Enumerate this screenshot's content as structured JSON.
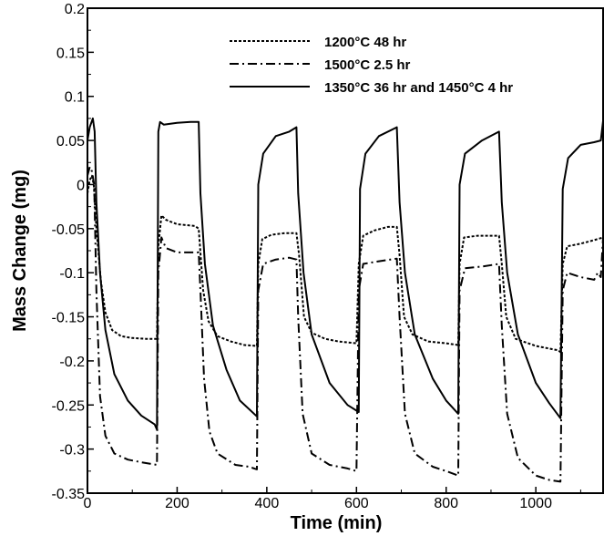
{
  "chart_data": {
    "type": "line",
    "title": "",
    "xlabel": "Time (min)",
    "ylabel": "Mass Change (mg)",
    "xlim": [
      0,
      1150
    ],
    "ylim": [
      -0.35,
      0.2
    ],
    "x_ticks": [
      0,
      200,
      400,
      600,
      800,
      1000
    ],
    "x_tick_labels": [
      "0",
      "200",
      "400",
      "600",
      "800",
      "1000"
    ],
    "y_ticks": [
      -0.35,
      -0.3,
      -0.25,
      -0.2,
      -0.15,
      -0.1,
      -0.05,
      0,
      0.05,
      0.1,
      0.15,
      0.2
    ],
    "y_tick_labels": [
      "-0.35",
      "-0.3",
      "-0.25",
      "-0.2",
      "-0.15",
      "-0.1",
      "-0.05",
      "0",
      "0.05",
      "0.1",
      "0.15",
      "0.2"
    ],
    "grid": false,
    "legend_position": "top-right",
    "series": [
      {
        "name": "1200°C 48 hr",
        "style": "dotted",
        "color": "#000000",
        "points": [
          [
            0,
            -0.01
          ],
          [
            5,
            0.005
          ],
          [
            10,
            0.01
          ],
          [
            14,
            0.0
          ],
          [
            20,
            -0.05
          ],
          [
            30,
            -0.11
          ],
          [
            40,
            -0.145
          ],
          [
            55,
            -0.165
          ],
          [
            75,
            -0.172
          ],
          [
            100,
            -0.174
          ],
          [
            130,
            -0.175
          ],
          [
            155,
            -0.175
          ],
          [
            158,
            -0.07
          ],
          [
            165,
            -0.035
          ],
          [
            175,
            -0.04
          ],
          [
            200,
            -0.045
          ],
          [
            220,
            -0.046
          ],
          [
            240,
            -0.047
          ],
          [
            248,
            -0.05
          ],
          [
            258,
            -0.12
          ],
          [
            270,
            -0.155
          ],
          [
            290,
            -0.172
          ],
          [
            320,
            -0.178
          ],
          [
            350,
            -0.182
          ],
          [
            378,
            -0.183
          ],
          [
            381,
            -0.09
          ],
          [
            390,
            -0.062
          ],
          [
            410,
            -0.057
          ],
          [
            440,
            -0.055
          ],
          [
            466,
            -0.055
          ],
          [
            472,
            -0.08
          ],
          [
            483,
            -0.15
          ],
          [
            500,
            -0.168
          ],
          [
            530,
            -0.175
          ],
          [
            560,
            -0.178
          ],
          [
            600,
            -0.18
          ],
          [
            605,
            -0.09
          ],
          [
            615,
            -0.058
          ],
          [
            640,
            -0.052
          ],
          [
            670,
            -0.048
          ],
          [
            690,
            -0.048
          ],
          [
            696,
            -0.08
          ],
          [
            706,
            -0.15
          ],
          [
            725,
            -0.17
          ],
          [
            760,
            -0.178
          ],
          [
            800,
            -0.18
          ],
          [
            827,
            -0.182
          ],
          [
            830,
            -0.09
          ],
          [
            840,
            -0.06
          ],
          [
            870,
            -0.058
          ],
          [
            900,
            -0.058
          ],
          [
            918,
            -0.058
          ],
          [
            924,
            -0.09
          ],
          [
            934,
            -0.15
          ],
          [
            955,
            -0.175
          ],
          [
            1000,
            -0.183
          ],
          [
            1050,
            -0.188
          ],
          [
            1055,
            -0.19
          ],
          [
            1060,
            -0.09
          ],
          [
            1070,
            -0.07
          ],
          [
            1100,
            -0.067
          ],
          [
            1130,
            -0.063
          ],
          [
            1150,
            -0.06
          ]
        ]
      },
      {
        "name": "1500°C 2.5 hr",
        "style": "dash-dot",
        "color": "#000000",
        "points": [
          [
            0,
            0.01
          ],
          [
            5,
            0.02
          ],
          [
            10,
            0.015
          ],
          [
            15,
            0.0
          ],
          [
            20,
            -0.12
          ],
          [
            28,
            -0.24
          ],
          [
            40,
            -0.285
          ],
          [
            60,
            -0.305
          ],
          [
            90,
            -0.312
          ],
          [
            120,
            -0.315
          ],
          [
            155,
            -0.318
          ],
          [
            158,
            -0.1
          ],
          [
            165,
            -0.06
          ],
          [
            175,
            -0.072
          ],
          [
            200,
            -0.077
          ],
          [
            220,
            -0.077
          ],
          [
            248,
            -0.077
          ],
          [
            252,
            -0.12
          ],
          [
            260,
            -0.22
          ],
          [
            272,
            -0.28
          ],
          [
            290,
            -0.305
          ],
          [
            330,
            -0.318
          ],
          [
            360,
            -0.32
          ],
          [
            378,
            -0.323
          ],
          [
            381,
            -0.12
          ],
          [
            392,
            -0.09
          ],
          [
            420,
            -0.085
          ],
          [
            450,
            -0.083
          ],
          [
            466,
            -0.085
          ],
          [
            470,
            -0.15
          ],
          [
            480,
            -0.26
          ],
          [
            500,
            -0.305
          ],
          [
            540,
            -0.318
          ],
          [
            580,
            -0.322
          ],
          [
            600,
            -0.325
          ],
          [
            605,
            -0.12
          ],
          [
            615,
            -0.09
          ],
          [
            650,
            -0.087
          ],
          [
            690,
            -0.084
          ],
          [
            696,
            -0.15
          ],
          [
            708,
            -0.26
          ],
          [
            730,
            -0.305
          ],
          [
            770,
            -0.32
          ],
          [
            800,
            -0.325
          ],
          [
            827,
            -0.33
          ],
          [
            830,
            -0.12
          ],
          [
            842,
            -0.095
          ],
          [
            880,
            -0.093
          ],
          [
            918,
            -0.09
          ],
          [
            924,
            -0.16
          ],
          [
            936,
            -0.26
          ],
          [
            960,
            -0.31
          ],
          [
            1000,
            -0.33
          ],
          [
            1030,
            -0.335
          ],
          [
            1055,
            -0.337
          ],
          [
            1060,
            -0.12
          ],
          [
            1070,
            -0.1
          ],
          [
            1100,
            -0.105
          ],
          [
            1130,
            -0.108
          ],
          [
            1138,
            -0.1
          ],
          [
            1145,
            -0.105
          ],
          [
            1150,
            -0.06
          ]
        ]
      },
      {
        "name": "1350°C 36 hr and 1450°C 4 hr",
        "style": "solid",
        "color": "#000000",
        "points": [
          [
            0,
            0.05
          ],
          [
            5,
            0.065
          ],
          [
            12,
            0.075
          ],
          [
            16,
            0.06
          ],
          [
            20,
            -0.02
          ],
          [
            28,
            -0.1
          ],
          [
            40,
            -0.165
          ],
          [
            60,
            -0.215
          ],
          [
            90,
            -0.245
          ],
          [
            120,
            -0.262
          ],
          [
            150,
            -0.272
          ],
          [
            155,
            -0.278
          ],
          [
            158,
            0.06
          ],
          [
            162,
            0.071
          ],
          [
            170,
            0.068
          ],
          [
            200,
            0.07
          ],
          [
            230,
            0.071
          ],
          [
            248,
            0.071
          ],
          [
            252,
            -0.01
          ],
          [
            262,
            -0.09
          ],
          [
            280,
            -0.16
          ],
          [
            310,
            -0.21
          ],
          [
            340,
            -0.245
          ],
          [
            378,
            -0.263
          ],
          [
            381,
            0.0
          ],
          [
            392,
            0.035
          ],
          [
            420,
            0.055
          ],
          [
            450,
            0.06
          ],
          [
            466,
            0.065
          ],
          [
            470,
            -0.01
          ],
          [
            482,
            -0.1
          ],
          [
            500,
            -0.17
          ],
          [
            540,
            -0.225
          ],
          [
            580,
            -0.25
          ],
          [
            605,
            -0.258
          ],
          [
            608,
            -0.005
          ],
          [
            620,
            0.035
          ],
          [
            650,
            0.055
          ],
          [
            690,
            0.065
          ],
          [
            696,
            -0.02
          ],
          [
            708,
            -0.1
          ],
          [
            730,
            -0.17
          ],
          [
            770,
            -0.22
          ],
          [
            800,
            -0.245
          ],
          [
            827,
            -0.26
          ],
          [
            830,
            0.0
          ],
          [
            842,
            0.035
          ],
          [
            880,
            0.05
          ],
          [
            918,
            0.06
          ],
          [
            924,
            -0.02
          ],
          [
            936,
            -0.1
          ],
          [
            960,
            -0.17
          ],
          [
            1000,
            -0.225
          ],
          [
            1030,
            -0.248
          ],
          [
            1055,
            -0.265
          ],
          [
            1060,
            -0.005
          ],
          [
            1072,
            0.03
          ],
          [
            1100,
            0.045
          ],
          [
            1130,
            0.048
          ],
          [
            1145,
            0.05
          ],
          [
            1150,
            0.072
          ]
        ]
      }
    ]
  }
}
